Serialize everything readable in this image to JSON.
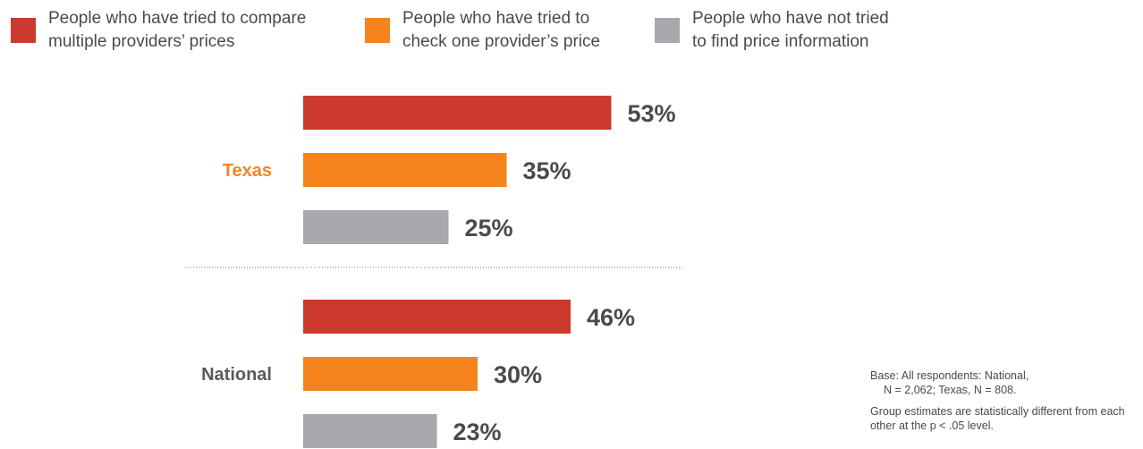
{
  "legend": {
    "items": [
      {
        "label": "People who have tried to compare\nmultiple providers’ prices",
        "color": "#cc3a2d"
      },
      {
        "label": "People who have tried to\ncheck one provider’s price",
        "color": "#f5841f"
      },
      {
        "label": "People who have not tried\nto find price information",
        "color": "#a7a8ab"
      }
    ]
  },
  "chart_data": {
    "type": "bar",
    "orientation": "horizontal",
    "series_names": [
      "People who have tried to compare multiple providers’ prices",
      "People who have tried to check one provider’s price",
      "People who have not tried to find price information"
    ],
    "groups": [
      {
        "name": "Texas",
        "label_color": "#f5841f",
        "values": [
          53,
          35,
          25
        ],
        "labels": [
          "53%",
          "35%",
          "25%"
        ]
      },
      {
        "name": "National",
        "label_color": "#5a5a5a",
        "values": [
          46,
          30,
          23
        ],
        "labels": [
          "46%",
          "30%",
          "23%"
        ]
      }
    ],
    "colors": [
      "#cc3a2d",
      "#f5841f",
      "#a7a8ab"
    ],
    "xlim": [
      0,
      100
    ],
    "grid": false,
    "legend_position": "top"
  },
  "notes": {
    "base_line1": "Base: All respondents: National,",
    "base_line2": "N = 2,062; Texas, N = 808.",
    "significance": "Group estimates are statistically different from each other at the p < .05 level."
  }
}
